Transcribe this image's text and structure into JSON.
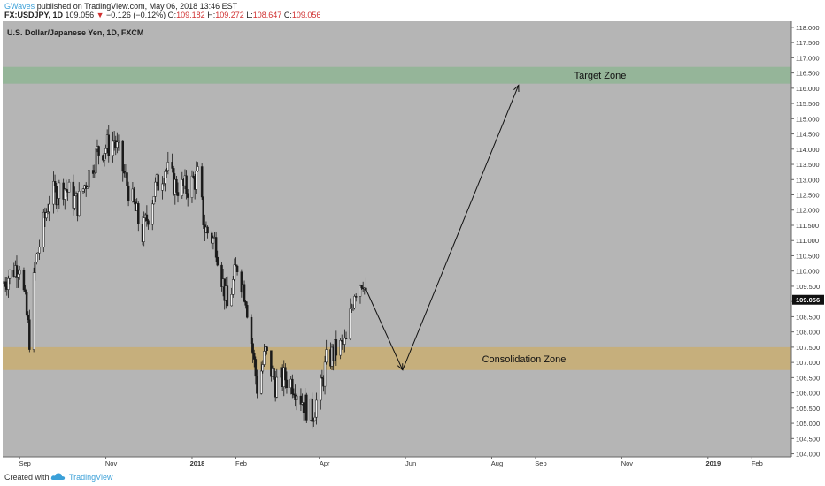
{
  "header": {
    "author": "GWaves",
    "published_text": "published on TradingView.com, May 06, 2018 13:46 EST",
    "symbol": "FX:USDJPY, 1D",
    "last": "109.056",
    "change": "−0.126 (−0.12%)",
    "o_label": "O:",
    "o": "109.182",
    "h_label": "H:",
    "h": "109.272",
    "l_label": "L:",
    "l": "108.647",
    "c_label": "C:",
    "c": "109.056"
  },
  "footer": {
    "created_with": "Created with",
    "brand": "TradingView"
  },
  "icons": {
    "brand_logo": "tradingview-cloud-icon",
    "down_arrow": "triangle-down-icon"
  },
  "chart_data": {
    "type": "candlestick",
    "title": "U.S. Dollar/Japanese Yen, 1D, FXCM",
    "ylim": [
      103.9,
      118.2
    ],
    "y_ticks": [
      "104.000",
      "104.500",
      "105.000",
      "105.500",
      "106.000",
      "106.500",
      "107.000",
      "107.500",
      "108.000",
      "108.500",
      "109.000",
      "109.500",
      "110.000",
      "110.500",
      "111.000",
      "111.500",
      "112.000",
      "112.500",
      "113.000",
      "113.500",
      "114.000",
      "114.500",
      "115.000",
      "115.500",
      "116.000",
      "116.500",
      "117.000",
      "117.500",
      "118.000"
    ],
    "x_tick_labels": [
      "Sep",
      "Nov",
      "2018",
      "Feb",
      "Apr",
      "Jun",
      "Aug",
      "Sep",
      "Nov",
      "2019",
      "Feb"
    ],
    "bold_x_ticks": [
      "2018",
      "2019"
    ],
    "last_price": "109.056",
    "zones": [
      {
        "label": "Target Zone",
        "from": 116.15,
        "to": 116.7,
        "color": "#8fb594"
      },
      {
        "label": "Consolidation Zone",
        "from": 106.75,
        "to": 107.5,
        "color": "#c9ae72"
      }
    ],
    "projection_path": [
      {
        "date": "2018-05-04",
        "price": 109.4
      },
      {
        "date": "2018-05-30",
        "price": 106.75
      },
      {
        "date": "2018-08-20",
        "price": 116.1
      }
    ],
    "price_path": [
      {
        "date": "2017-08-20",
        "price": 109.6
      },
      {
        "date": "2017-09-01",
        "price": 110.3
      },
      {
        "date": "2017-09-08",
        "price": 107.8
      },
      {
        "date": "2017-09-12",
        "price": 110.2
      },
      {
        "date": "2017-09-22",
        "price": 112.4
      },
      {
        "date": "2017-10-02",
        "price": 112.8
      },
      {
        "date": "2017-10-12",
        "price": 112.2
      },
      {
        "date": "2017-10-20",
        "price": 113.2
      },
      {
        "date": "2017-10-26",
        "price": 113.9
      },
      {
        "date": "2017-11-02",
        "price": 114.1
      },
      {
        "date": "2017-11-07",
        "price": 114.3
      },
      {
        "date": "2017-11-15",
        "price": 113.0
      },
      {
        "date": "2017-11-27",
        "price": 111.2
      },
      {
        "date": "2017-12-05",
        "price": 112.6
      },
      {
        "date": "2017-12-13",
        "price": 113.4
      },
      {
        "date": "2017-12-20",
        "price": 112.8
      },
      {
        "date": "2017-12-28",
        "price": 112.7
      },
      {
        "date": "2018-01-05",
        "price": 113.1
      },
      {
        "date": "2018-01-10",
        "price": 111.4
      },
      {
        "date": "2018-01-18",
        "price": 110.9
      },
      {
        "date": "2018-01-26",
        "price": 108.8
      },
      {
        "date": "2018-02-02",
        "price": 110.2
      },
      {
        "date": "2018-02-08",
        "price": 109.2
      },
      {
        "date": "2018-02-16",
        "price": 106.2
      },
      {
        "date": "2018-02-22",
        "price": 107.3
      },
      {
        "date": "2018-03-01",
        "price": 106.3
      },
      {
        "date": "2018-03-08",
        "price": 106.5
      },
      {
        "date": "2018-03-14",
        "price": 106.3
      },
      {
        "date": "2018-03-22",
        "price": 105.6
      },
      {
        "date": "2018-03-27",
        "price": 105.3
      },
      {
        "date": "2018-04-02",
        "price": 106.1
      },
      {
        "date": "2018-04-06",
        "price": 107.0
      },
      {
        "date": "2018-04-13",
        "price": 107.4
      },
      {
        "date": "2018-04-20",
        "price": 107.6
      },
      {
        "date": "2018-04-26",
        "price": 109.4
      },
      {
        "date": "2018-05-02",
        "price": 109.8
      },
      {
        "date": "2018-05-04",
        "price": 109.06
      }
    ]
  }
}
